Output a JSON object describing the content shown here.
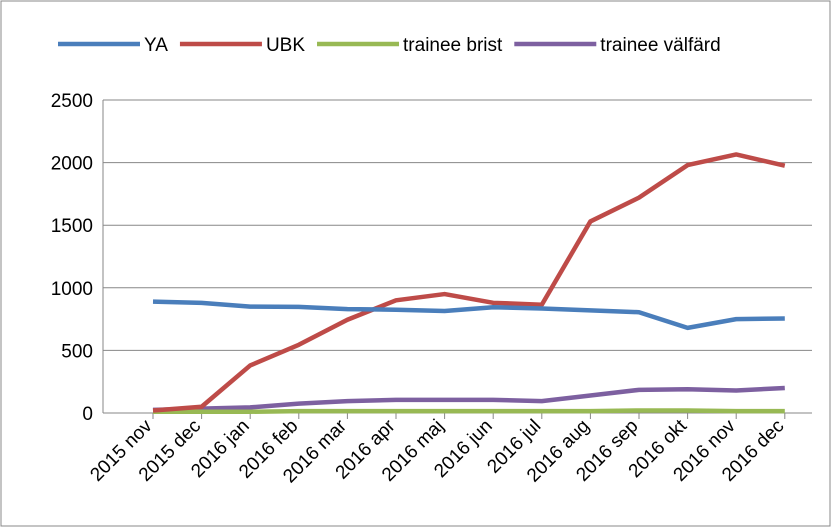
{
  "chart_data": {
    "type": "line",
    "categories": [
      "2015 nov",
      "2015 dec",
      "2016 jan",
      "2016 feb",
      "2016 mar",
      "2016 apr",
      "2016 maj",
      "2016 jun",
      "2016 jul",
      "2016 aug",
      "2016 sep",
      "2016 okt",
      "2016 nov",
      "2016 dec"
    ],
    "series": [
      {
        "name": "YA",
        "color": "#4a7ebb",
        "values": [
          890,
          880,
          850,
          848,
          830,
          825,
          815,
          845,
          835,
          820,
          805,
          680,
          750,
          755
        ]
      },
      {
        "name": "UBK",
        "color": "#be4b48",
        "values": [
          20,
          50,
          380,
          545,
          745,
          900,
          950,
          880,
          865,
          1530,
          1720,
          1980,
          2065,
          1975
        ]
      },
      {
        "name": "trainee brist",
        "color": "#98b954",
        "values": [
          10,
          10,
          10,
          15,
          15,
          15,
          15,
          15,
          15,
          15,
          20,
          20,
          15,
          15
        ]
      },
      {
        "name": "trainee välfärd",
        "color": "#7d60a0",
        "values": [
          25,
          35,
          45,
          75,
          95,
          105,
          105,
          105,
          95,
          140,
          185,
          190,
          180,
          200
        ]
      }
    ],
    "ylim": [
      0,
      2500
    ],
    "yticks": [
      0,
      500,
      1000,
      1500,
      2000,
      2500
    ],
    "grid": true,
    "legend": "top"
  }
}
